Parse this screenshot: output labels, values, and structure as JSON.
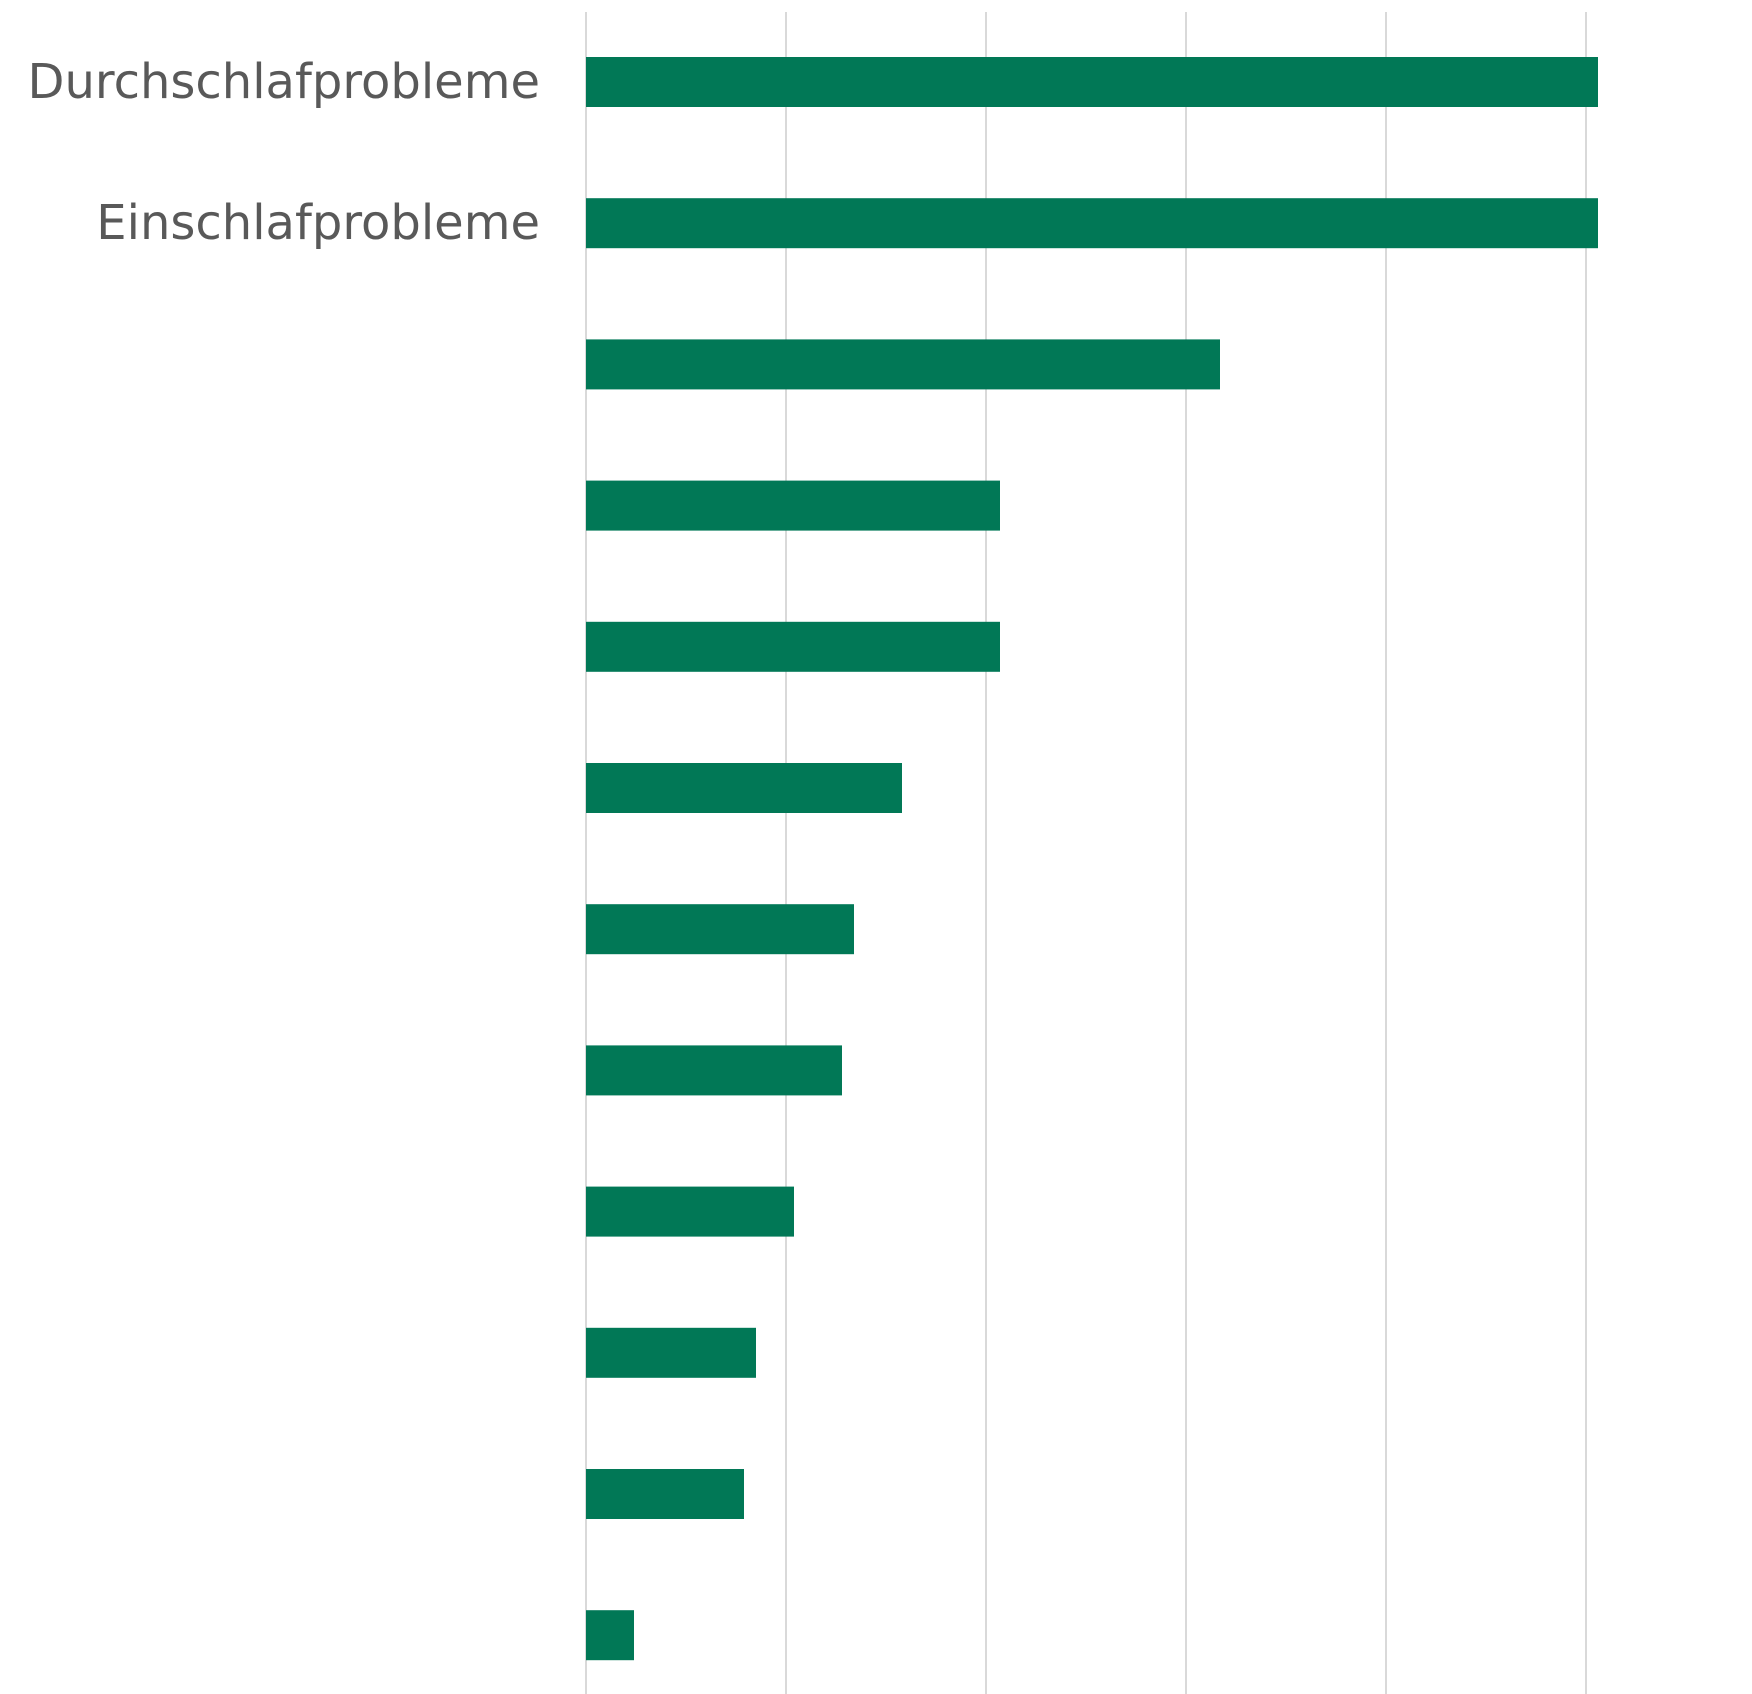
{
  "chart_data": {
    "type": "bar",
    "orientation": "horizontal",
    "title": "",
    "xlabel": "",
    "ylabel": "",
    "categories": [
      "Durchschlafprobleme",
      "Einschlafprobleme",
      "",
      "",
      "",
      "",
      "",
      "",
      "",
      "",
      "",
      ""
    ],
    "values": [
      50.6,
      50.6,
      31.7,
      20.7,
      20.7,
      15.8,
      13.4,
      12.8,
      10.4,
      8.5,
      7.9,
      2.4
    ],
    "xlim": [
      0,
      55
    ],
    "grid": true,
    "legend": "none",
    "colors": {
      "bar": "#017856",
      "label": "#595959",
      "grid": "#d9d9d9"
    }
  }
}
